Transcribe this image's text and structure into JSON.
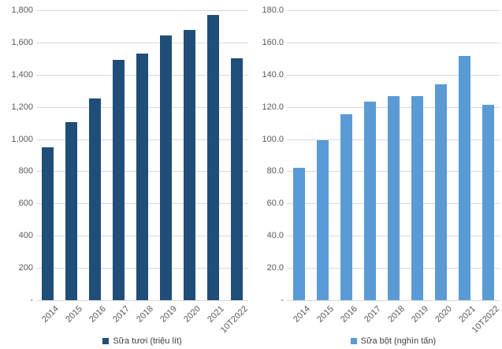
{
  "colors": {
    "fresh_milk_bar": "#1F4E79",
    "powder_milk_bar": "#5B9BD5",
    "gridline": "#D9D9D9",
    "axis_text": "#595959",
    "legend_text": "#404040",
    "background": "#FFFFFF"
  },
  "chart_data": [
    {
      "type": "bar",
      "title": "",
      "legend": "Sữa tươi (triệu lít)",
      "categories": [
        "2014",
        "2015",
        "2016",
        "2017",
        "2018",
        "2019",
        "2020",
        "2021",
        "10T2022"
      ],
      "values": [
        950,
        1105,
        1250,
        1490,
        1530,
        1645,
        1680,
        1770,
        1500
      ],
      "ylim": [
        0,
        1800
      ],
      "ytick_step": 200,
      "ytick_labels": [
        "1,800",
        "1,600",
        "1,400",
        "1,200",
        "1,000",
        "800",
        "600",
        "400",
        "200",
        "-"
      ],
      "bar_color": "#1F4E79",
      "grid": true,
      "legend_position": "bottom"
    },
    {
      "type": "bar",
      "title": "",
      "legend": "Sữa bột (nghìn tấn)",
      "categories": [
        "2014",
        "2015",
        "2016",
        "2017",
        "2018",
        "2019",
        "2020",
        "2021",
        "10T2022"
      ],
      "values": [
        82,
        99.5,
        115.5,
        123.5,
        126.5,
        126.5,
        134,
        151.5,
        121.5
      ],
      "ylim": [
        0,
        180
      ],
      "ytick_step": 20,
      "ytick_labels": [
        "180.0",
        "160.0",
        "140.0",
        "120.0",
        "100.0",
        "80.0",
        "60.0",
        "40.0",
        "20.0",
        "-"
      ],
      "bar_color": "#5B9BD5",
      "grid": true,
      "legend_position": "bottom"
    }
  ]
}
